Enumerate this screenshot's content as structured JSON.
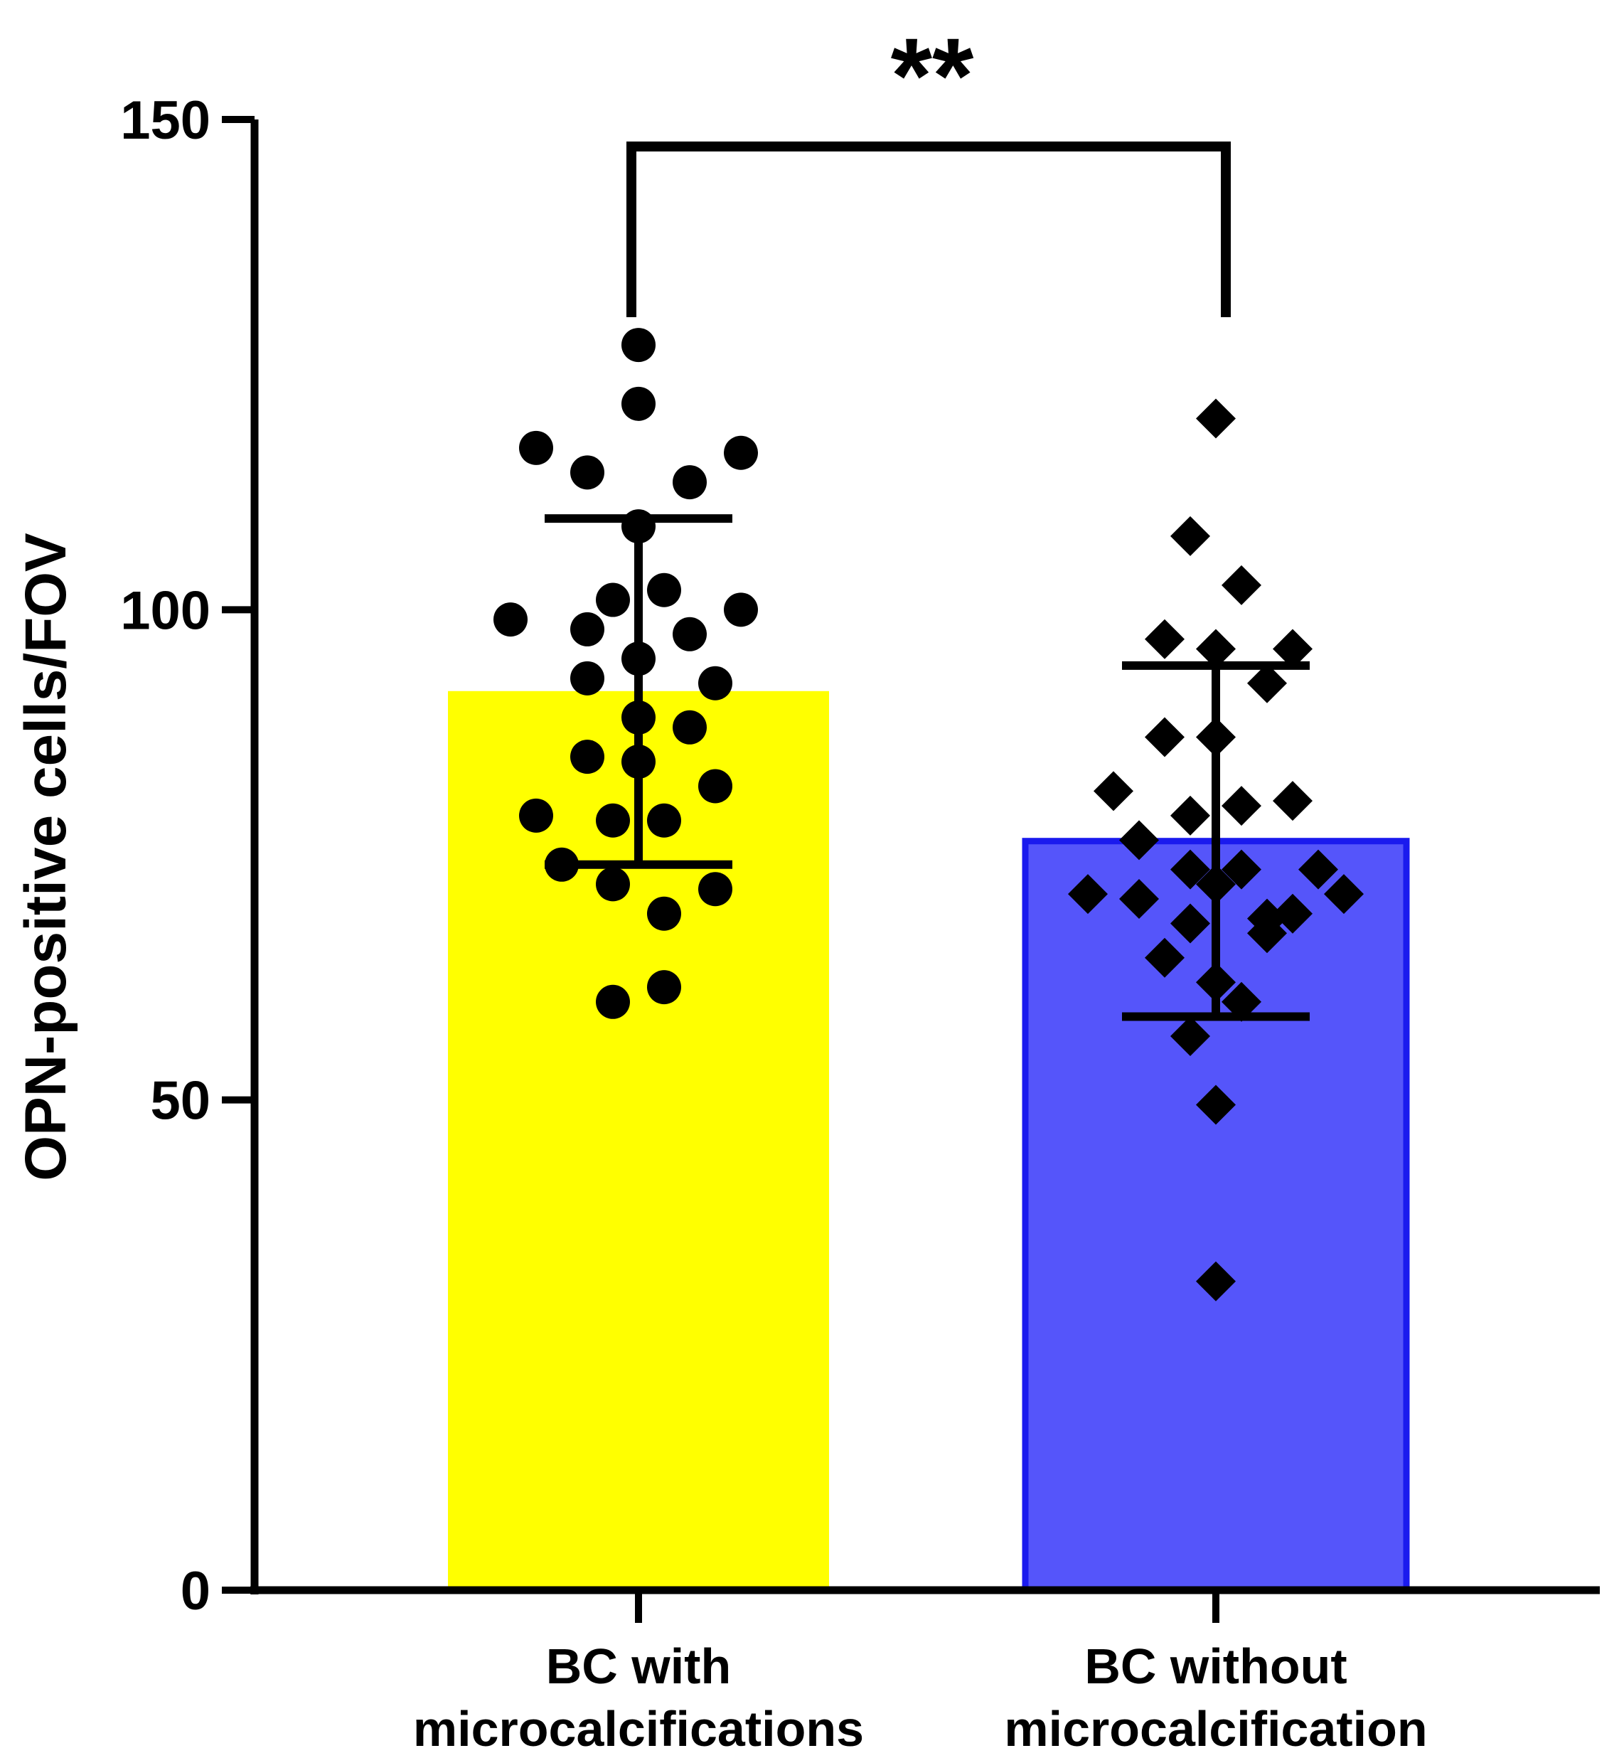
{
  "chart_data": {
    "type": "bar",
    "title": "",
    "xlabel": "",
    "ylabel": "OPN-positive cells/FOV",
    "ylim": [
      0,
      150
    ],
    "yticks": [
      0,
      50,
      100,
      150
    ],
    "categories": [
      [
        "BC with",
        "microcalcifications"
      ],
      [
        "BC without",
        "microcalcification"
      ]
    ],
    "values": [
      91.7,
      76.4
    ],
    "error_bars": [
      {
        "upper": 109.3,
        "lower": 74.0
      },
      {
        "upper": 94.3,
        "lower": 58.5
      }
    ],
    "bar_colors": [
      "#ffff00",
      "#5555fa"
    ],
    "bar_edge_colors": [
      "#ffff00",
      "#1a1aee"
    ],
    "marker_shapes": [
      "circle",
      "diamond"
    ],
    "points": [
      [
        127,
        121,
        116.5,
        116,
        114,
        113,
        108.5,
        102,
        101,
        100,
        99,
        98,
        97.5,
        95,
        93,
        92.5,
        89,
        88,
        85,
        84.5,
        82,
        79,
        78.5,
        78.5,
        74,
        72,
        71.5,
        69,
        61.5,
        60
      ],
      [
        119.5,
        107.5,
        102.5,
        97,
        96,
        96,
        92.5,
        87,
        87,
        81.5,
        80.5,
        80,
        79,
        76.5,
        73.5,
        73.5,
        73.5,
        72,
        71,
        71,
        70.5,
        69,
        68.5,
        68,
        67,
        64.5,
        62,
        60,
        56.5,
        49.5,
        31.5
      ]
    ],
    "significance": {
      "label": "**",
      "between": [
        0,
        1
      ]
    }
  }
}
